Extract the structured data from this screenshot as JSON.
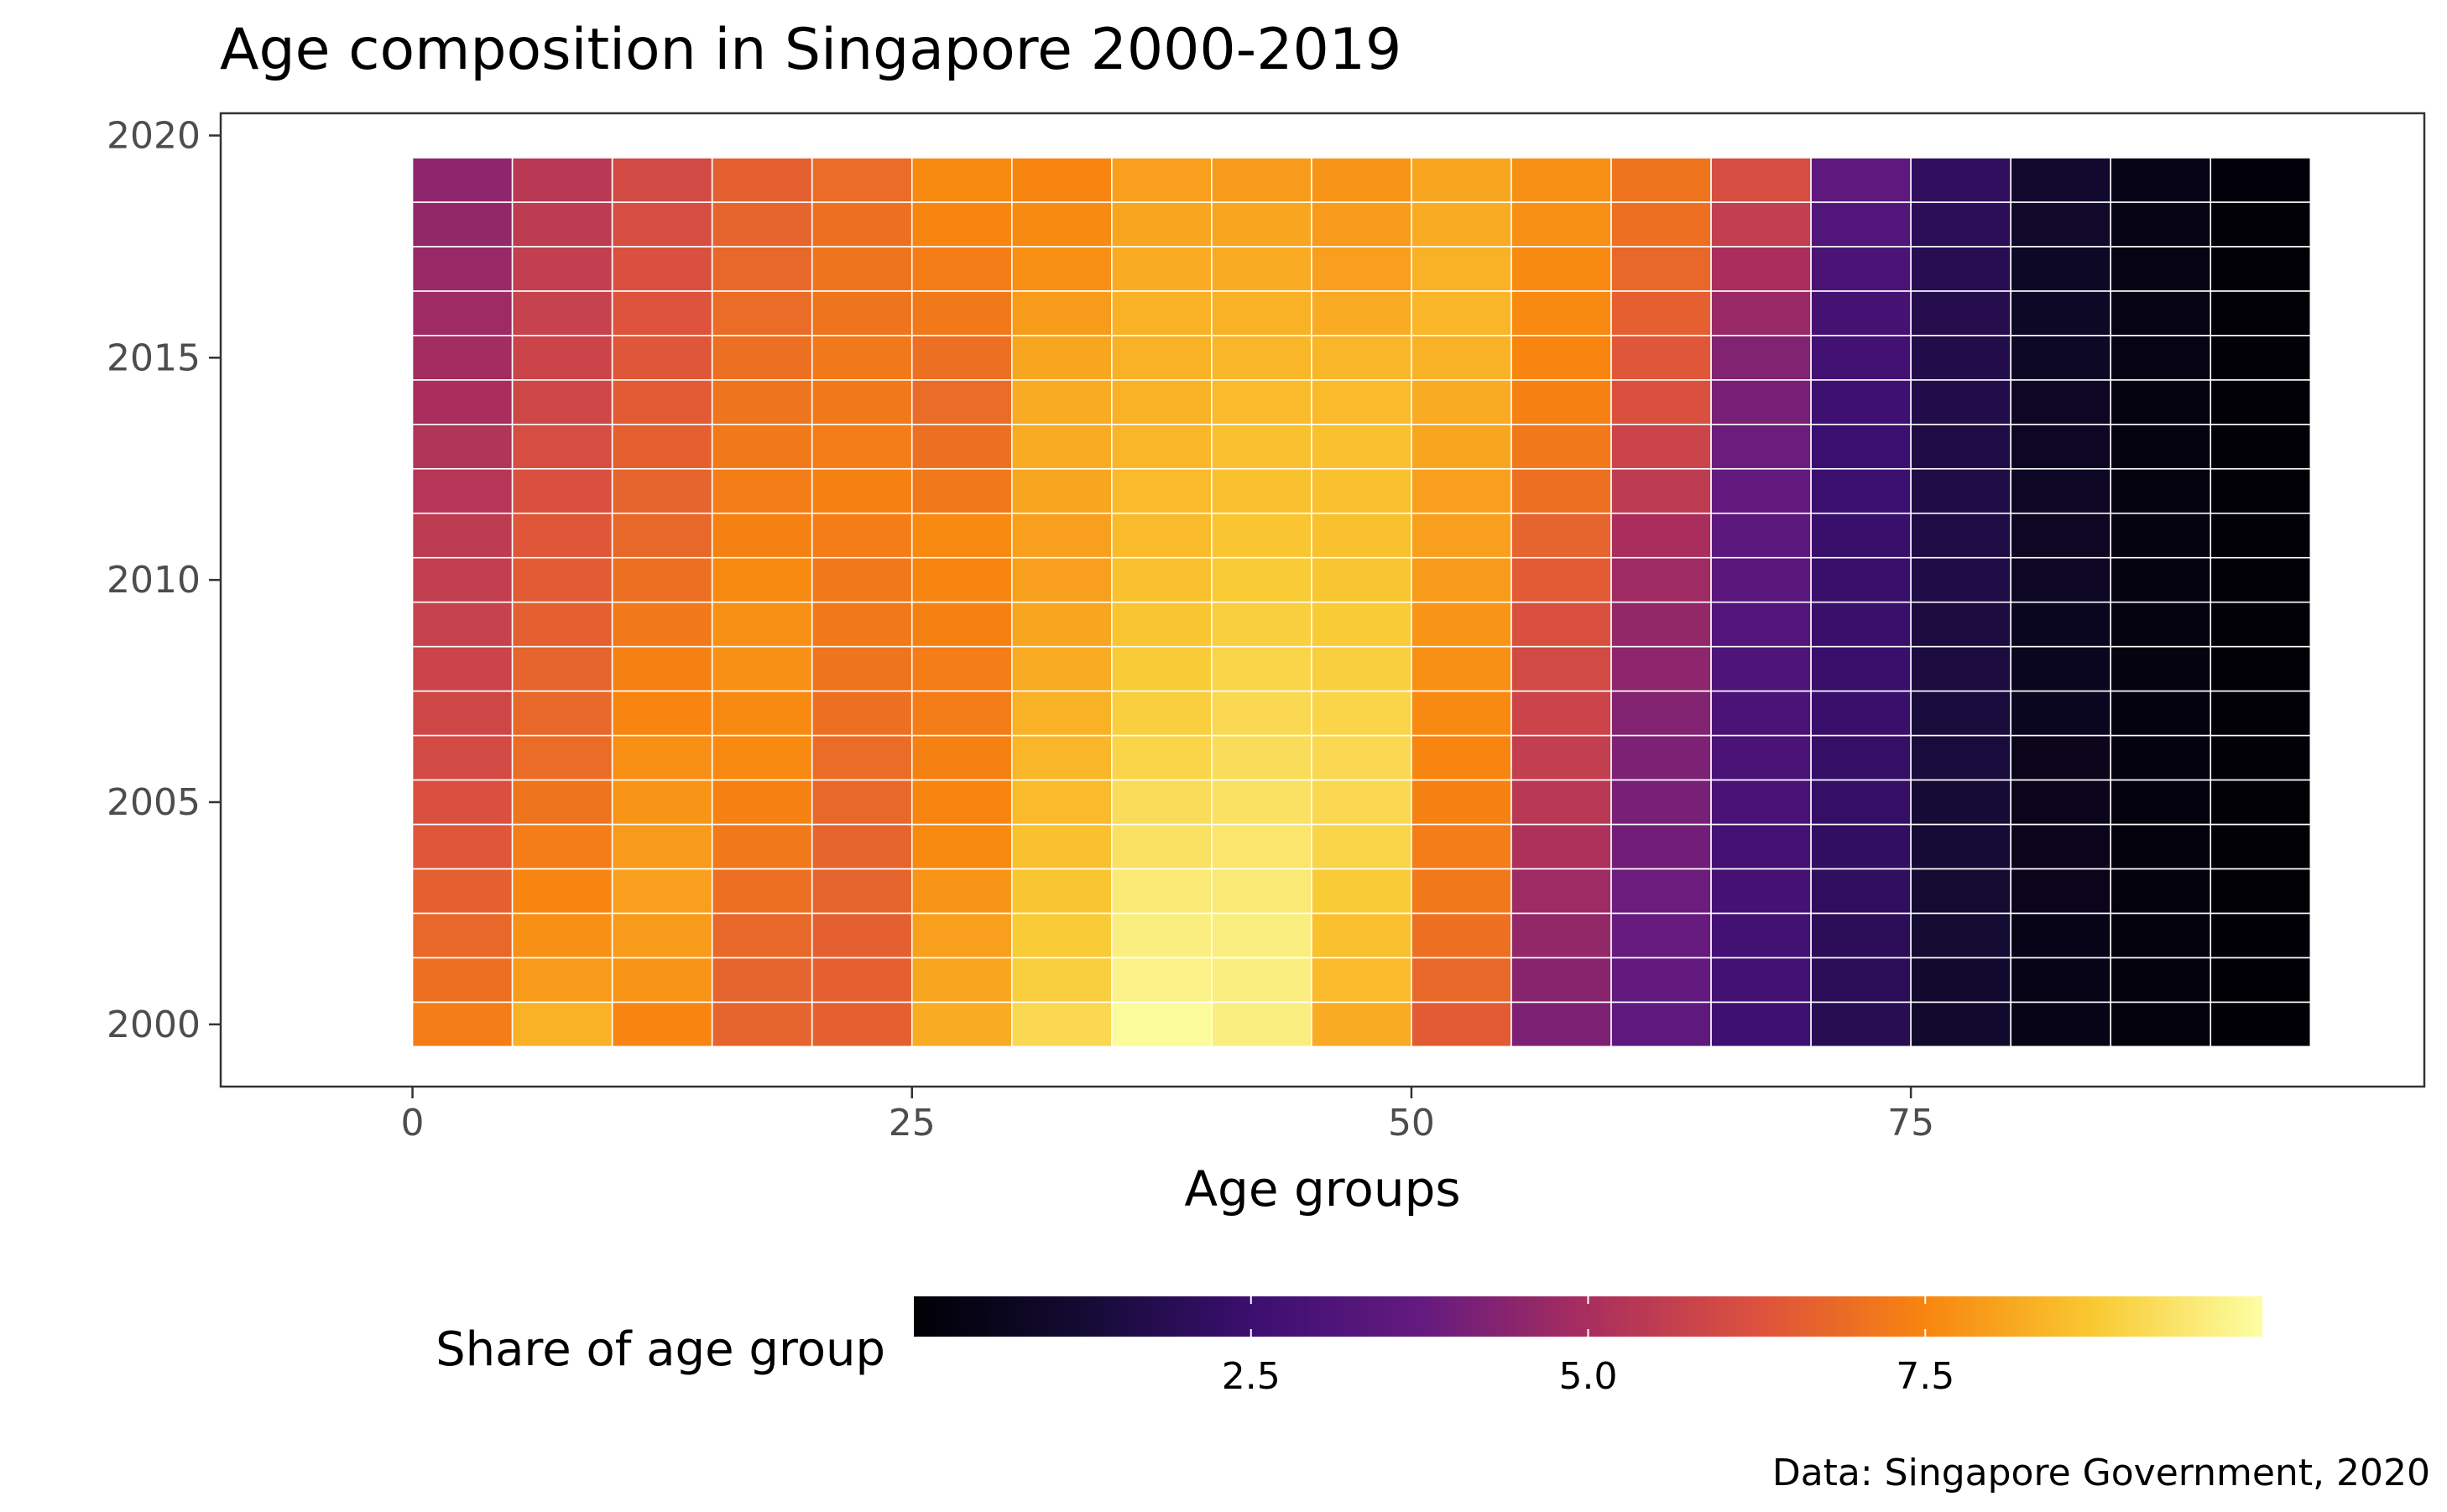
{
  "chart_data": {
    "type": "heatmap",
    "title": "Age composition in Singapore 2000-2019",
    "xlabel": "Age groups",
    "ylabel": "",
    "x": [
      0,
      5,
      10,
      15,
      20,
      25,
      30,
      35,
      40,
      45,
      50,
      55,
      60,
      65,
      70,
      75,
      80,
      85,
      90
    ],
    "x_bin_width": 5,
    "xlim": [
      -9.6,
      100.7
    ],
    "x_ticks": [
      0,
      25,
      50,
      75
    ],
    "x_tick_labels": [
      "0",
      "25",
      "50",
      "75"
    ],
    "y": [
      2000,
      2001,
      2002,
      2003,
      2004,
      2005,
      2006,
      2007,
      2008,
      2009,
      2010,
      2011,
      2012,
      2013,
      2014,
      2015,
      2016,
      2017,
      2018,
      2019
    ],
    "ylim": [
      1998.6,
      2020.5
    ],
    "y_ticks": [
      2000,
      2005,
      2010,
      2015,
      2020
    ],
    "y_tick_labels": [
      "2000",
      "2005",
      "2010",
      "2015",
      "2020"
    ],
    "values": [
      [
        7.3,
        8.3,
        7.5,
        6.7,
        6.6,
        8.2,
        9.1,
        9.9,
        9.6,
        8.2,
        6.5,
        4.2,
        3.6,
        2.6,
        1.9,
        1.1,
        0.5,
        0.2,
        0.05
      ],
      [
        7.0,
        7.9,
        7.8,
        6.7,
        6.6,
        8.1,
        8.9,
        9.7,
        9.6,
        8.5,
        6.8,
        4.4,
        3.7,
        2.7,
        2.0,
        1.1,
        0.5,
        0.2,
        0.05
      ],
      [
        6.8,
        7.7,
        7.9,
        6.8,
        6.6,
        8.0,
        8.8,
        9.6,
        9.6,
        8.6,
        7.0,
        4.6,
        3.8,
        2.7,
        2.0,
        1.2,
        0.5,
        0.2,
        0.05
      ],
      [
        6.6,
        7.5,
        8.0,
        7.0,
        6.7,
        7.8,
        8.7,
        9.5,
        9.5,
        8.8,
        7.2,
        4.8,
        3.9,
        2.8,
        2.1,
        1.2,
        0.6,
        0.2,
        0.06
      ],
      [
        6.4,
        7.3,
        7.9,
        7.2,
        6.7,
        7.6,
        8.6,
        9.3,
        9.4,
        9.0,
        7.3,
        5.1,
        4.0,
        2.8,
        2.2,
        1.3,
        0.6,
        0.2,
        0.06
      ],
      [
        6.2,
        7.1,
        7.8,
        7.4,
        6.8,
        7.5,
        8.5,
        9.2,
        9.3,
        9.1,
        7.4,
        5.4,
        4.1,
        2.9,
        2.3,
        1.3,
        0.6,
        0.25,
        0.06
      ],
      [
        6.0,
        6.9,
        7.7,
        7.6,
        6.9,
        7.4,
        8.4,
        9.0,
        9.2,
        9.1,
        7.5,
        5.6,
        4.2,
        3.0,
        2.3,
        1.4,
        0.6,
        0.25,
        0.07
      ],
      [
        5.9,
        6.8,
        7.5,
        7.6,
        7.0,
        7.3,
        8.3,
        8.9,
        9.1,
        9.0,
        7.6,
        5.8,
        4.3,
        3.0,
        2.4,
        1.4,
        0.7,
        0.25,
        0.07
      ],
      [
        5.8,
        6.7,
        7.4,
        7.7,
        7.1,
        7.3,
        8.2,
        8.8,
        9.0,
        8.9,
        7.7,
        6.0,
        4.5,
        3.1,
        2.4,
        1.5,
        0.7,
        0.3,
        0.07
      ],
      [
        5.7,
        6.6,
        7.2,
        7.7,
        7.2,
        7.4,
        8.1,
        8.7,
        8.9,
        8.8,
        7.8,
        6.2,
        4.6,
        3.2,
        2.4,
        1.5,
        0.7,
        0.3,
        0.08
      ],
      [
        5.6,
        6.5,
        7.0,
        7.6,
        7.2,
        7.5,
        8.0,
        8.6,
        8.8,
        8.7,
        7.9,
        6.5,
        4.8,
        3.4,
        2.4,
        1.6,
        0.8,
        0.3,
        0.08
      ],
      [
        5.5,
        6.4,
        6.8,
        7.4,
        7.3,
        7.6,
        8.0,
        8.5,
        8.7,
        8.6,
        8.0,
        6.7,
        5.0,
        3.5,
        2.4,
        1.6,
        0.8,
        0.3,
        0.08
      ],
      [
        5.3,
        6.2,
        6.7,
        7.3,
        7.4,
        7.2,
        8.1,
        8.5,
        8.6,
        8.6,
        8.0,
        7.0,
        5.5,
        3.7,
        2.5,
        1.6,
        0.8,
        0.35,
        0.09
      ],
      [
        5.2,
        6.1,
        6.6,
        7.2,
        7.3,
        7.0,
        8.2,
        8.4,
        8.6,
        8.6,
        8.1,
        7.2,
        5.8,
        3.9,
        2.5,
        1.6,
        0.8,
        0.35,
        0.09
      ],
      [
        5.0,
        5.9,
        6.5,
        7.1,
        7.2,
        6.9,
        8.2,
        8.3,
        8.5,
        8.5,
        8.2,
        7.4,
        6.2,
        4.1,
        2.6,
        1.7,
        0.8,
        0.35,
        0.1
      ],
      [
        4.9,
        5.8,
        6.4,
        7.0,
        7.2,
        7.0,
        8.1,
        8.3,
        8.4,
        8.4,
        8.3,
        7.5,
        6.4,
        4.3,
        2.7,
        1.7,
        0.9,
        0.4,
        0.1
      ],
      [
        4.8,
        5.7,
        6.3,
        6.9,
        7.1,
        7.2,
        7.9,
        8.3,
        8.3,
        8.2,
        8.4,
        7.6,
        6.6,
        4.7,
        2.8,
        1.8,
        0.9,
        0.4,
        0.1
      ],
      [
        4.7,
        5.6,
        6.2,
        6.8,
        7.1,
        7.3,
        7.7,
        8.2,
        8.2,
        8.0,
        8.3,
        7.6,
        6.8,
        5.0,
        3.0,
        1.9,
        0.9,
        0.4,
        0.1
      ],
      [
        4.6,
        5.5,
        6.1,
        6.7,
        7.0,
        7.5,
        7.6,
        8.1,
        8.1,
        7.9,
        8.2,
        7.7,
        7.0,
        5.6,
        3.2,
        2.0,
        1.0,
        0.45,
        0.1
      ],
      [
        4.5,
        5.4,
        6.0,
        6.6,
        6.9,
        7.6,
        7.5,
        8.0,
        7.9,
        7.8,
        8.1,
        7.7,
        7.1,
        6.1,
        3.6,
        2.1,
        1.1,
        0.5,
        0.12
      ]
    ],
    "colorscale": "inferno",
    "color_range": [
      0,
      10
    ],
    "legend": {
      "title": "Share of age group",
      "position": "bottom",
      "ticks": [
        2.5,
        5.0,
        7.5
      ],
      "tick_labels": [
        "2.5",
        "5.0",
        "7.5"
      ]
    },
    "caption": "Data: Singapore Government, 2020",
    "grid": false
  }
}
